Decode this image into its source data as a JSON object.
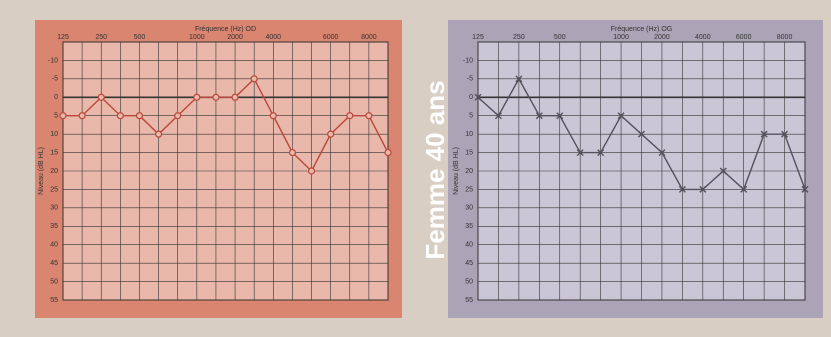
{
  "caption": "Femme 40 ans",
  "chart_data": [
    {
      "type": "line",
      "title": "Fréquence (Hz) OD",
      "y_label": "Niveau (dB HL)",
      "panel_color": "#d98570",
      "plot_color": "#e9b8aa",
      "marker": "circle",
      "categories": [
        "125",
        null,
        "250",
        null,
        "500",
        null,
        null,
        "1000",
        null,
        "2000",
        null,
        "4000",
        null,
        null,
        "6000",
        null,
        "8000",
        null
      ],
      "series": [
        {
          "color": "#b8473a",
          "values": [
            5,
            5,
            0,
            5,
            5,
            10,
            5,
            0,
            0,
            0,
            -5,
            5,
            15,
            20,
            10,
            5,
            5,
            15
          ]
        }
      ],
      "ylim": [
        -15,
        55
      ],
      "y_inverted": true,
      "yticks": [
        -10,
        -5,
        0,
        5,
        10,
        15,
        20,
        25,
        30,
        35,
        40,
        45,
        50,
        55
      ],
      "grid": true
    },
    {
      "type": "line",
      "title": "Fréquence (Hz) OG",
      "y_label": "Niveau (dB HL)",
      "panel_color": "#aaa4b6",
      "plot_color": "#cbc6d5",
      "marker": "cross",
      "categories": [
        "125",
        null,
        "250",
        null,
        "500",
        null,
        null,
        "1000",
        null,
        "2000",
        null,
        "4000",
        null,
        "6000",
        null,
        "8000",
        null
      ],
      "series": [
        {
          "color": "#54505c",
          "values": [
            0,
            5,
            -5,
            5,
            5,
            15,
            15,
            5,
            10,
            15,
            25,
            25,
            20,
            25,
            10,
            10,
            25
          ]
        }
      ],
      "ylim": [
        -15,
        55
      ],
      "y_inverted": true,
      "yticks": [
        -10,
        -5,
        0,
        5,
        10,
        15,
        20,
        25,
        30,
        35,
        40,
        45,
        50,
        55
      ],
      "grid": true
    }
  ]
}
